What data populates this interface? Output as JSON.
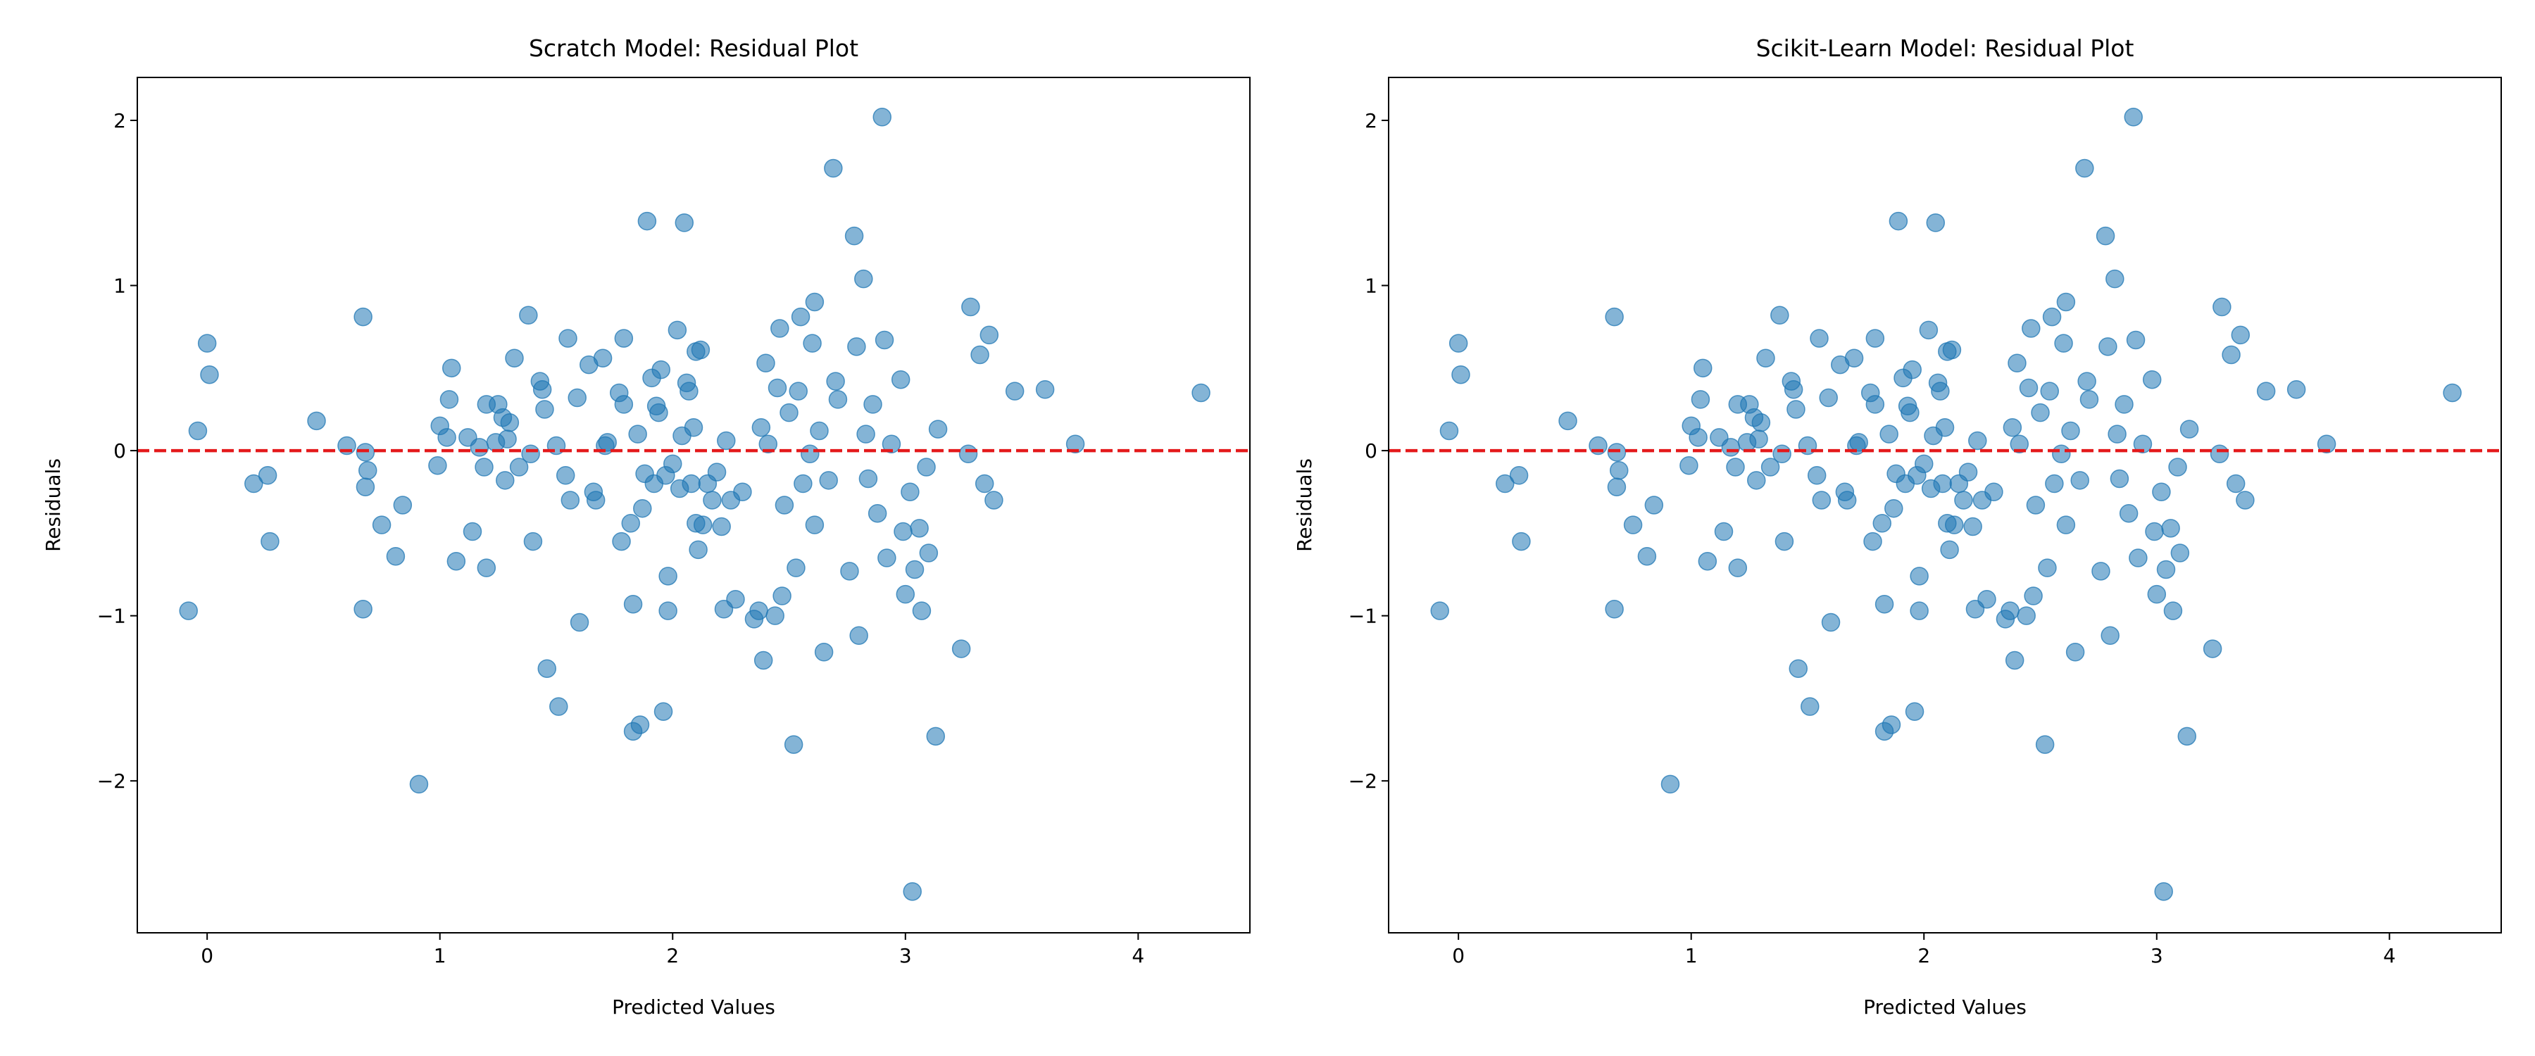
{
  "chart_data": [
    {
      "type": "scatter",
      "title": "Scratch Model: Residual Plot",
      "x_label": "Predicted Values",
      "y_label": "Residuals",
      "color": "#1f77b4",
      "opacity": 0.55,
      "xlim": [
        -0.3,
        4.48
      ],
      "ylim": [
        -2.92,
        2.26
      ],
      "xticks": [
        0,
        1,
        2,
        3,
        4
      ],
      "yticks": [
        {
          "value": -2,
          "label": "−2"
        },
        {
          "value": -1,
          "label": "−1"
        },
        0,
        1,
        2
      ],
      "reference_line": {
        "y": 0,
        "color": "#e41a1c",
        "dashed": true
      },
      "x": [
        -0.08,
        -0.04,
        0,
        0.01,
        0.2,
        0.26,
        0.27,
        0.47,
        0.6,
        0.67,
        0.67,
        0.68,
        0.68,
        0.69,
        0.75,
        0.81,
        0.84,
        0.91,
        0.99,
        1.0,
        1.03,
        1.04,
        1.05,
        1.07,
        1.12,
        1.14,
        1.17,
        1.19,
        1.2,
        1.2,
        1.24,
        1.25,
        1.27,
        1.28,
        1.29,
        1.3,
        1.32,
        1.34,
        1.38,
        1.39,
        1.4,
        1.43,
        1.44,
        1.45,
        1.46,
        1.5,
        1.51,
        1.54,
        1.55,
        1.56,
        1.59,
        1.6,
        1.64,
        1.66,
        1.67,
        1.7,
        1.71,
        1.72,
        1.77,
        1.78,
        1.79,
        1.79,
        1.82,
        1.83,
        1.83,
        1.85,
        1.86,
        1.87,
        1.88,
        1.89,
        1.91,
        1.92,
        1.93,
        1.94,
        1.95,
        1.96,
        1.97,
        1.98,
        1.98,
        2.0,
        2.02,
        2.03,
        2.04,
        2.05,
        2.06,
        2.07,
        2.08,
        2.09,
        2.1,
        2.1,
        2.11,
        2.12,
        2.13,
        2.15,
        2.17,
        2.19,
        2.21,
        2.22,
        2.23,
        2.25,
        2.27,
        2.3,
        2.35,
        2.37,
        2.38,
        2.39,
        2.4,
        2.41,
        2.44,
        2.45,
        2.46,
        2.47,
        2.48,
        2.5,
        2.52,
        2.53,
        2.54,
        2.55,
        2.56,
        2.59,
        2.6,
        2.61,
        2.61,
        2.63,
        2.65,
        2.67,
        2.69,
        2.7,
        2.71,
        2.76,
        2.78,
        2.79,
        2.8,
        2.82,
        2.83,
        2.84,
        2.86,
        2.88,
        2.9,
        2.91,
        2.92,
        2.94,
        2.98,
        2.99,
        3.0,
        3.02,
        3.03,
        3.04,
        3.06,
        3.07,
        3.09,
        3.1,
        3.13,
        3.14,
        3.24,
        3.27,
        3.28,
        3.32,
        3.34,
        3.36,
        3.38,
        3.47,
        3.6,
        3.73,
        4.27
      ],
      "y": [
        -0.97,
        0.12,
        0.65,
        0.46,
        -0.2,
        -0.15,
        -0.55,
        0.18,
        0.03,
        0.81,
        -0.96,
        -0.01,
        -0.22,
        -0.12,
        -0.45,
        -0.64,
        -0.33,
        -2.02,
        -0.09,
        0.15,
        0.08,
        0.31,
        0.5,
        -0.67,
        0.08,
        -0.49,
        0.02,
        -0.1,
        0.28,
        -0.71,
        0.05,
        0.28,
        0.2,
        -0.18,
        0.07,
        0.17,
        0.56,
        -0.1,
        0.82,
        -0.02,
        -0.55,
        0.42,
        0.37,
        0.25,
        -1.32,
        0.03,
        -1.55,
        -0.15,
        0.68,
        -0.3,
        0.32,
        -1.04,
        0.52,
        -0.25,
        -0.3,
        0.56,
        0.03,
        0.05,
        0.35,
        -0.55,
        0.68,
        0.28,
        -0.44,
        -1.7,
        -0.93,
        0.1,
        -1.66,
        -0.35,
        -0.14,
        1.39,
        0.44,
        -0.2,
        0.27,
        0.23,
        0.49,
        -1.58,
        -0.15,
        -0.97,
        -0.76,
        -0.08,
        0.73,
        -0.23,
        0.09,
        1.38,
        0.41,
        0.36,
        -0.2,
        0.14,
        0.6,
        -0.44,
        -0.6,
        0.61,
        -0.45,
        -0.2,
        -0.3,
        -0.13,
        -0.46,
        -0.96,
        0.06,
        -0.3,
        -0.9,
        -0.25,
        -1.02,
        -0.97,
        0.14,
        -1.27,
        0.53,
        0.04,
        -1.0,
        0.38,
        0.74,
        -0.88,
        -0.33,
        0.23,
        -1.78,
        -0.71,
        0.36,
        0.81,
        -0.2,
        -0.02,
        0.65,
        0.9,
        -0.45,
        0.12,
        -1.22,
        -0.18,
        1.71,
        0.42,
        0.31,
        -0.73,
        1.3,
        0.63,
        -1.12,
        1.04,
        0.1,
        -0.17,
        0.28,
        -0.38,
        2.02,
        0.67,
        -0.65,
        0.04,
        0.43,
        -0.49,
        -0.87,
        -0.25,
        -2.67,
        -0.72,
        -0.47,
        -0.97,
        -0.1,
        -0.62,
        -1.73,
        0.13,
        -1.2,
        -0.02,
        0.87,
        0.58,
        -0.2,
        0.7,
        -0.3,
        0.36,
        0.37,
        0.04,
        0.35
      ]
    },
    {
      "type": "scatter",
      "title": "Scikit-Learn Model: Residual Plot",
      "x_label": "Predicted Values",
      "y_label": "Residuals",
      "color": "#1f77b4",
      "opacity": 0.55,
      "xlim": [
        -0.3,
        4.48
      ],
      "ylim": [
        -2.92,
        2.26
      ],
      "xticks": [
        0,
        1,
        2,
        3,
        4
      ],
      "yticks": [
        {
          "value": -2,
          "label": "−2"
        },
        {
          "value": -1,
          "label": "−1"
        },
        0,
        1,
        2
      ],
      "reference_line": {
        "y": 0,
        "color": "#e41a1c",
        "dashed": true
      },
      "x": [
        -0.08,
        -0.04,
        0,
        0.01,
        0.2,
        0.26,
        0.27,
        0.47,
        0.6,
        0.67,
        0.67,
        0.68,
        0.68,
        0.69,
        0.75,
        0.81,
        0.84,
        0.91,
        0.99,
        1.0,
        1.03,
        1.04,
        1.05,
        1.07,
        1.12,
        1.14,
        1.17,
        1.19,
        1.2,
        1.2,
        1.24,
        1.25,
        1.27,
        1.28,
        1.29,
        1.3,
        1.32,
        1.34,
        1.38,
        1.39,
        1.4,
        1.43,
        1.44,
        1.45,
        1.46,
        1.5,
        1.51,
        1.54,
        1.55,
        1.56,
        1.59,
        1.6,
        1.64,
        1.66,
        1.67,
        1.7,
        1.71,
        1.72,
        1.77,
        1.78,
        1.79,
        1.79,
        1.82,
        1.83,
        1.83,
        1.85,
        1.86,
        1.87,
        1.88,
        1.89,
        1.91,
        1.92,
        1.93,
        1.94,
        1.95,
        1.96,
        1.97,
        1.98,
        1.98,
        2.0,
        2.02,
        2.03,
        2.04,
        2.05,
        2.06,
        2.07,
        2.08,
        2.09,
        2.1,
        2.1,
        2.11,
        2.12,
        2.13,
        2.15,
        2.17,
        2.19,
        2.21,
        2.22,
        2.23,
        2.25,
        2.27,
        2.3,
        2.35,
        2.37,
        2.38,
        2.39,
        2.4,
        2.41,
        2.44,
        2.45,
        2.46,
        2.47,
        2.48,
        2.5,
        2.52,
        2.53,
        2.54,
        2.55,
        2.56,
        2.59,
        2.6,
        2.61,
        2.61,
        2.63,
        2.65,
        2.67,
        2.69,
        2.7,
        2.71,
        2.76,
        2.78,
        2.79,
        2.8,
        2.82,
        2.83,
        2.84,
        2.86,
        2.88,
        2.9,
        2.91,
        2.92,
        2.94,
        2.98,
        2.99,
        3.0,
        3.02,
        3.03,
        3.04,
        3.06,
        3.07,
        3.09,
        3.1,
        3.13,
        3.14,
        3.24,
        3.27,
        3.28,
        3.32,
        3.34,
        3.36,
        3.38,
        3.47,
        3.6,
        3.73,
        4.27
      ],
      "y": [
        -0.97,
        0.12,
        0.65,
        0.46,
        -0.2,
        -0.15,
        -0.55,
        0.18,
        0.03,
        0.81,
        -0.96,
        -0.01,
        -0.22,
        -0.12,
        -0.45,
        -0.64,
        -0.33,
        -2.02,
        -0.09,
        0.15,
        0.08,
        0.31,
        0.5,
        -0.67,
        0.08,
        -0.49,
        0.02,
        -0.1,
        0.28,
        -0.71,
        0.05,
        0.28,
        0.2,
        -0.18,
        0.07,
        0.17,
        0.56,
        -0.1,
        0.82,
        -0.02,
        -0.55,
        0.42,
        0.37,
        0.25,
        -1.32,
        0.03,
        -1.55,
        -0.15,
        0.68,
        -0.3,
        0.32,
        -1.04,
        0.52,
        -0.25,
        -0.3,
        0.56,
        0.03,
        0.05,
        0.35,
        -0.55,
        0.68,
        0.28,
        -0.44,
        -1.7,
        -0.93,
        0.1,
        -1.66,
        -0.35,
        -0.14,
        1.39,
        0.44,
        -0.2,
        0.27,
        0.23,
        0.49,
        -1.58,
        -0.15,
        -0.97,
        -0.76,
        -0.08,
        0.73,
        -0.23,
        0.09,
        1.38,
        0.41,
        0.36,
        -0.2,
        0.14,
        0.6,
        -0.44,
        -0.6,
        0.61,
        -0.45,
        -0.2,
        -0.3,
        -0.13,
        -0.46,
        -0.96,
        0.06,
        -0.3,
        -0.9,
        -0.25,
        -1.02,
        -0.97,
        0.14,
        -1.27,
        0.53,
        0.04,
        -1.0,
        0.38,
        0.74,
        -0.88,
        -0.33,
        0.23,
        -1.78,
        -0.71,
        0.36,
        0.81,
        -0.2,
        -0.02,
        0.65,
        0.9,
        -0.45,
        0.12,
        -1.22,
        -0.18,
        1.71,
        0.42,
        0.31,
        -0.73,
        1.3,
        0.63,
        -1.12,
        1.04,
        0.1,
        -0.17,
        0.28,
        -0.38,
        2.02,
        0.67,
        -0.65,
        0.04,
        0.43,
        -0.49,
        -0.87,
        -0.25,
        -2.67,
        -0.72,
        -0.47,
        -0.97,
        -0.1,
        -0.62,
        -1.73,
        0.13,
        -1.2,
        -0.02,
        0.87,
        0.58,
        -0.2,
        0.7,
        -0.3,
        0.36,
        0.37,
        0.04,
        0.35
      ]
    }
  ]
}
